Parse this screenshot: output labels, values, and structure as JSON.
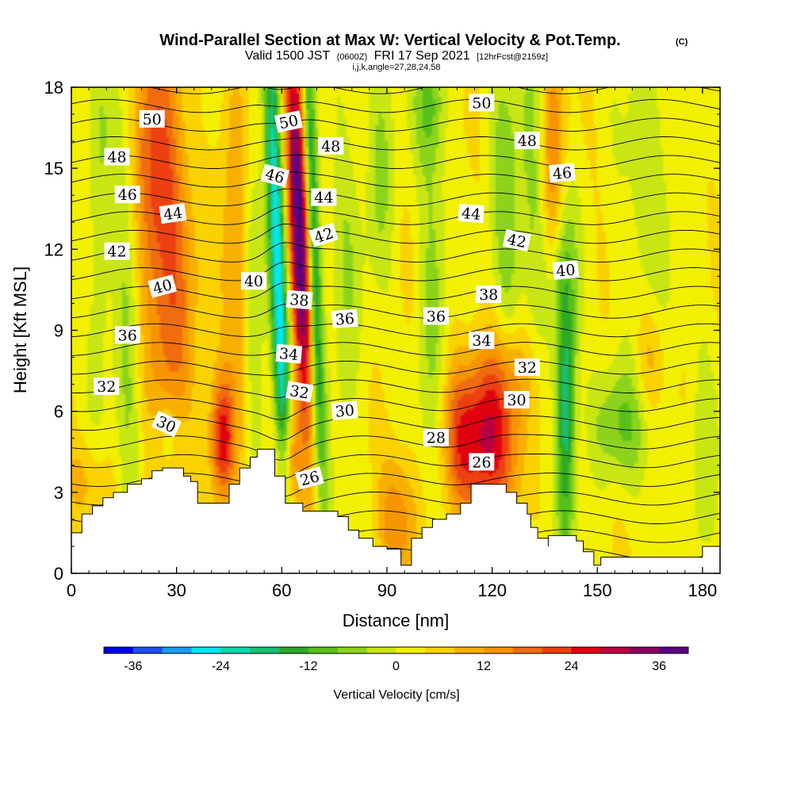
{
  "chart_data": {
    "type": "heatmap",
    "title": "Wind-Parallel Section at Max W: Vertical Velocity & Pot.Temp.",
    "title_mark": "(C)",
    "subtitle": {
      "valid": "Valid 1500 JST",
      "utc": "(0600Z)",
      "date": "FRI 17 Sep 2021",
      "forecast": "[12hrFcst@2159z]"
    },
    "meta_line": "i,j,k,angle=27,28,24,58",
    "xlabel": "Distance [nm]",
    "ylabel": "Height [Kft MSL]",
    "xlim": [
      0,
      185
    ],
    "ylim": [
      0,
      18
    ],
    "x_ticks": [
      0,
      30,
      60,
      90,
      120,
      150,
      180
    ],
    "y_ticks": [
      0,
      3,
      6,
      9,
      12,
      15,
      18
    ],
    "colorbar": {
      "label": "Vertical Velocity [cm/s]",
      "min": -40,
      "max": 40,
      "step": 4,
      "tick_values": [
        -36,
        -24,
        -12,
        0,
        12,
        24,
        36
      ],
      "tick_labels": [
        "-36",
        "-24",
        "-12",
        "0",
        "12",
        "24",
        "36"
      ],
      "colors": [
        "#0000e8",
        "#2050f0",
        "#1a9cf0",
        "#00e8f0",
        "#10d8b0",
        "#18c070",
        "#2caa28",
        "#58c018",
        "#8cd41c",
        "#c8e614",
        "#f2f000",
        "#fad200",
        "#f8b000",
        "#f89400",
        "#f06c10",
        "#ec4010",
        "#e00010",
        "#b80040",
        "#8a0060",
        "#5a0080"
      ]
    },
    "velocity_features": [
      {
        "x": 28,
        "y": 11,
        "sx": 5,
        "sy": 6.5,
        "tilt": -0.18,
        "value": 16
      },
      {
        "x": 22,
        "y": 15,
        "sx": 4,
        "sy": 3.5,
        "tilt": -0.1,
        "value": 10
      },
      {
        "x": 16,
        "y": 10,
        "sx": 2.5,
        "sy": 8,
        "tilt": -0.1,
        "value": -8
      },
      {
        "x": 8,
        "y": 13,
        "sx": 2.5,
        "sy": 5,
        "tilt": 0,
        "value": -7
      },
      {
        "x": 28,
        "y": 5,
        "sx": 4,
        "sy": 1.2,
        "tilt": 0,
        "value": -9
      },
      {
        "x": 4,
        "y": 3.5,
        "sx": 5,
        "sy": 1.2,
        "tilt": 0,
        "value": 6
      },
      {
        "x": 43,
        "y": 5,
        "sx": 2.5,
        "sy": 1.6,
        "tilt": 0,
        "value": 22
      },
      {
        "x": 47,
        "y": 12,
        "sx": 3,
        "sy": 5,
        "tilt": -0.1,
        "value": 10
      },
      {
        "x": 52,
        "y": 9,
        "sx": 2,
        "sy": 6,
        "tilt": -0.15,
        "value": -9
      },
      {
        "x": 59,
        "y": 11,
        "sx": 1.7,
        "sy": 8,
        "tilt": -0.28,
        "value": -30
      },
      {
        "x": 65,
        "y": 13,
        "sx": 2.0,
        "sy": 5.5,
        "tilt": -0.28,
        "value": 40
      },
      {
        "x": 69,
        "y": 12,
        "sx": 1.5,
        "sy": 7,
        "tilt": -0.25,
        "value": -22
      },
      {
        "x": 62,
        "y": 4,
        "sx": 2,
        "sy": 1.6,
        "tilt": 0,
        "value": 20
      },
      {
        "x": 78,
        "y": 10,
        "sx": 3,
        "sy": 6,
        "tilt": 0,
        "value": -6
      },
      {
        "x": 88,
        "y": 15,
        "sx": 3,
        "sy": 3,
        "tilt": 0,
        "value": -8
      },
      {
        "x": 93,
        "y": 2,
        "sx": 4,
        "sy": 1.8,
        "tilt": 0,
        "value": 12
      },
      {
        "x": 103,
        "y": 10,
        "sx": 3,
        "sy": 6,
        "tilt": 0,
        "value": -8
      },
      {
        "x": 119,
        "y": 4.8,
        "sx": 7,
        "sy": 2,
        "tilt": 0,
        "value": 24
      },
      {
        "x": 125,
        "y": 7.5,
        "sx": 6,
        "sy": 1.5,
        "tilt": 0,
        "value": 10
      },
      {
        "x": 124,
        "y": 13,
        "sx": 3,
        "sy": 4.5,
        "tilt": -0.1,
        "value": -10
      },
      {
        "x": 132,
        "y": 13,
        "sx": 3,
        "sy": 6,
        "tilt": -0.05,
        "value": -8
      },
      {
        "x": 137,
        "y": 15,
        "sx": 2.5,
        "sy": 3,
        "tilt": 0,
        "value": 14
      },
      {
        "x": 141,
        "y": 6,
        "sx": 2,
        "sy": 3.5,
        "tilt": 0,
        "value": -22
      },
      {
        "x": 140,
        "y": 11.5,
        "sx": 3,
        "sy": 2.5,
        "tilt": 0,
        "value": -8
      },
      {
        "x": 156,
        "y": 5.5,
        "sx": 6,
        "sy": 1.5,
        "tilt": 0,
        "value": -10
      },
      {
        "x": 164,
        "y": 14,
        "sx": 5,
        "sy": 5,
        "tilt": 0,
        "value": -6
      },
      {
        "x": 165,
        "y": 8,
        "sx": 3,
        "sy": 1.5,
        "tilt": 0,
        "value": 8
      },
      {
        "x": 102,
        "y": 17.5,
        "sx": 3,
        "sy": 1.5,
        "tilt": 0,
        "value": -9
      },
      {
        "x": 110,
        "y": 5,
        "sx": 4,
        "sy": 2,
        "tilt": 0,
        "value": 8
      },
      {
        "x": 180,
        "y": 4,
        "sx": 3,
        "sy": 3,
        "tilt": 0,
        "value": -6
      }
    ],
    "terrain": [
      [
        0,
        1.5
      ],
      [
        3,
        1.5
      ],
      [
        3,
        2.2
      ],
      [
        6,
        2.5
      ],
      [
        9,
        2.8
      ],
      [
        12,
        3.0
      ],
      [
        16,
        3.3
      ],
      [
        20,
        3.5
      ],
      [
        23,
        3.8
      ],
      [
        26,
        3.9
      ],
      [
        30,
        3.9
      ],
      [
        32,
        3.6
      ],
      [
        34,
        3.4
      ],
      [
        36,
        3.2
      ],
      [
        36,
        2.6
      ],
      [
        45,
        2.6
      ],
      [
        45,
        3.3
      ],
      [
        48,
        3.9
      ],
      [
        51,
        4.3
      ],
      [
        53,
        4.6
      ],
      [
        57,
        4.6
      ],
      [
        58,
        3.6
      ],
      [
        61,
        3.2
      ],
      [
        61,
        2.6
      ],
      [
        66,
        2.3
      ],
      [
        72,
        2.3
      ],
      [
        76,
        2.1
      ],
      [
        79,
        1.6
      ],
      [
        82,
        1.3
      ],
      [
        86,
        1.0
      ],
      [
        90,
        0.9
      ],
      [
        94,
        0.9
      ],
      [
        94,
        0.3
      ],
      [
        97,
        0.3
      ],
      [
        97,
        1.3
      ],
      [
        100,
        1.7
      ],
      [
        103,
        2.0
      ],
      [
        107,
        2.2
      ],
      [
        111,
        2.6
      ],
      [
        114,
        3.3
      ],
      [
        121,
        3.3
      ],
      [
        124,
        3.0
      ],
      [
        127,
        2.6
      ],
      [
        130,
        2.2
      ],
      [
        131,
        1.7
      ],
      [
        133,
        1.3
      ],
      [
        136,
        1.0
      ],
      [
        136,
        1.4
      ],
      [
        142,
        1.4
      ],
      [
        144,
        1.2
      ],
      [
        146,
        0.8
      ],
      [
        149,
        0.6
      ],
      [
        149,
        0.3
      ],
      [
        151,
        0.3
      ],
      [
        151,
        0.6
      ],
      [
        180,
        0.6
      ],
      [
        180,
        1.0
      ],
      [
        185,
        1.0
      ]
    ],
    "theta_levels": [
      25,
      26,
      27,
      28,
      29,
      30,
      31,
      32,
      33,
      34,
      35,
      36,
      37,
      38,
      39,
      40,
      41,
      42,
      43,
      44,
      45,
      46,
      47,
      48,
      49,
      50,
      51
    ],
    "contour_labels": [
      {
        "text": "50",
        "x": 23,
        "y": 16.8,
        "angle": 0
      },
      {
        "text": "48",
        "x": 13,
        "y": 15.4,
        "angle": 0
      },
      {
        "text": "46",
        "x": 16,
        "y": 14.0,
        "angle": 0
      },
      {
        "text": "44",
        "x": 29,
        "y": 13.3,
        "angle": -8
      },
      {
        "text": "42",
        "x": 13,
        "y": 11.9,
        "angle": 0
      },
      {
        "text": "40",
        "x": 26,
        "y": 10.6,
        "angle": -15
      },
      {
        "text": "36",
        "x": 16,
        "y": 8.8,
        "angle": 0
      },
      {
        "text": "32",
        "x": 10,
        "y": 6.9,
        "angle": 0
      },
      {
        "text": "30",
        "x": 27,
        "y": 5.5,
        "angle": 25
      },
      {
        "text": "50",
        "x": 62,
        "y": 16.7,
        "angle": -12
      },
      {
        "text": "48",
        "x": 74,
        "y": 15.8,
        "angle": 0
      },
      {
        "text": "46",
        "x": 58,
        "y": 14.7,
        "angle": 15
      },
      {
        "text": "44",
        "x": 72,
        "y": 13.9,
        "angle": 0
      },
      {
        "text": "42",
        "x": 72,
        "y": 12.5,
        "angle": -18
      },
      {
        "text": "40",
        "x": 52,
        "y": 10.8,
        "angle": 0
      },
      {
        "text": "38",
        "x": 65,
        "y": 10.1,
        "angle": 5
      },
      {
        "text": "36",
        "x": 78,
        "y": 9.4,
        "angle": -5
      },
      {
        "text": "34",
        "x": 62,
        "y": 8.1,
        "angle": 5
      },
      {
        "text": "32",
        "x": 65,
        "y": 6.7,
        "angle": 10
      },
      {
        "text": "30",
        "x": 78,
        "y": 6.0,
        "angle": -5
      },
      {
        "text": "26",
        "x": 68,
        "y": 3.5,
        "angle": -15
      },
      {
        "text": "50",
        "x": 117,
        "y": 17.4,
        "angle": 0
      },
      {
        "text": "48",
        "x": 130,
        "y": 16.0,
        "angle": 0
      },
      {
        "text": "46",
        "x": 140,
        "y": 14.8,
        "angle": -5
      },
      {
        "text": "44",
        "x": 114,
        "y": 13.3,
        "angle": 5
      },
      {
        "text": "42",
        "x": 127,
        "y": 12.3,
        "angle": 12
      },
      {
        "text": "40",
        "x": 141,
        "y": 11.2,
        "angle": -5
      },
      {
        "text": "38",
        "x": 119,
        "y": 10.3,
        "angle": 0
      },
      {
        "text": "36",
        "x": 104,
        "y": 9.5,
        "angle": 0
      },
      {
        "text": "34",
        "x": 117,
        "y": 8.6,
        "angle": 0
      },
      {
        "text": "32",
        "x": 130,
        "y": 7.6,
        "angle": 0
      },
      {
        "text": "30",
        "x": 127,
        "y": 6.4,
        "angle": 0
      },
      {
        "text": "28",
        "x": 104,
        "y": 5.0,
        "angle": 0
      },
      {
        "text": "26",
        "x": 117,
        "y": 4.1,
        "angle": 0
      }
    ]
  }
}
